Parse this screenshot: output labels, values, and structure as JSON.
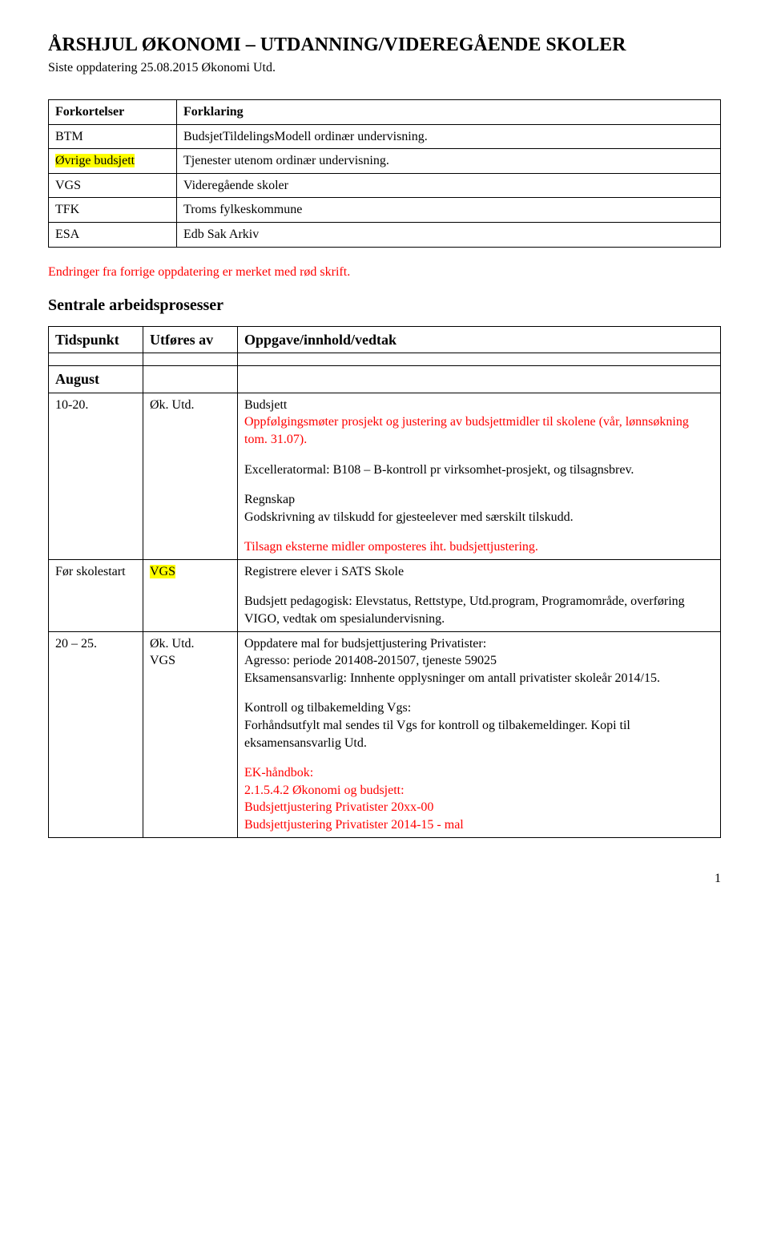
{
  "title": "ÅRSHJUL ØKONOMI – UTDANNING/VIDEREGÅENDE SKOLER",
  "subtitle": "Siste oppdatering 25.08.2015 Økonomi Utd.",
  "abbrTable": {
    "headers": [
      "Forkortelser",
      "Forklaring"
    ],
    "rows": [
      {
        "abbr": "BTM",
        "desc": "BudsjetTildelingsModell ordinær undervisning.",
        "highlight": false
      },
      {
        "abbr": "Øvrige budsjett",
        "desc": "Tjenester utenom ordinær undervisning.",
        "highlight": true
      },
      {
        "abbr": "VGS",
        "desc": "Videregående skoler",
        "highlight": false
      },
      {
        "abbr": "TFK",
        "desc": "Troms fylkeskommune",
        "highlight": false
      },
      {
        "abbr": "ESA",
        "desc": "Edb Sak Arkiv",
        "highlight": false
      }
    ]
  },
  "changesNote": "Endringer fra forrige oppdatering er merket med rød skrift.",
  "sectionTitle": "Sentrale arbeidsprosesser",
  "mainTable": {
    "headers": [
      "Tidspunkt",
      "Utføres av",
      "Oppgave/innhold/vedtak"
    ],
    "rows": [
      {
        "kind": "month",
        "when": "August",
        "who": "",
        "cell": ""
      },
      {
        "kind": "normal",
        "when": "10-20.",
        "who": "Øk. Utd.",
        "paras": [
          {
            "text": "Budsjett",
            "followRed": "Oppfølgingsmøter prosjekt og justering av budsjettmidler til skolene (vår, lønnsøkning tom. 31.07)."
          },
          {
            "text": "Excelleratormal: B108 – B-kontroll pr virksomhet-prosjekt, og tilsagnsbrev."
          },
          {
            "text": "Regnskap\nGodskrivning av tilskudd for gjesteelever med særskilt tilskudd."
          },
          {
            "red": "Tilsagn eksterne midler omposteres iht. budsjettjustering."
          }
        ]
      },
      {
        "kind": "normal",
        "when": "Før skolestart",
        "who": "VGS",
        "whoHighlight": true,
        "paras": [
          {
            "text": "Registrere elever i SATS Skole"
          },
          {
            "text": "Budsjett pedagogisk: Elevstatus, Rettstype, Utd.program, Programområde, overføring VIGO, vedtak om spesialundervisning."
          }
        ]
      },
      {
        "kind": "normal",
        "when": "20 – 25.",
        "who": "Øk. Utd.\nVGS",
        "paras": [
          {
            "text": "Oppdatere mal for budsjettjustering Privatister:\nAgresso: periode 201408-201507, tjeneste 59025\nEksamensansvarlig: Innhente opplysninger om antall privatister skoleår 2014/15."
          },
          {
            "text": "Kontroll og tilbakemelding Vgs:\nForhåndsutfylt mal sendes til Vgs for kontroll og tilbakemeldinger. Kopi til eksamensansvarlig Utd."
          },
          {
            "red": "EK-håndbok:\n2.1.5.4.2 Økonomi og budsjett:\nBudsjettjustering Privatister 20xx-00\nBudsjettjustering Privatister 2014-15 - mal"
          }
        ]
      }
    ]
  },
  "pageNum": "1"
}
